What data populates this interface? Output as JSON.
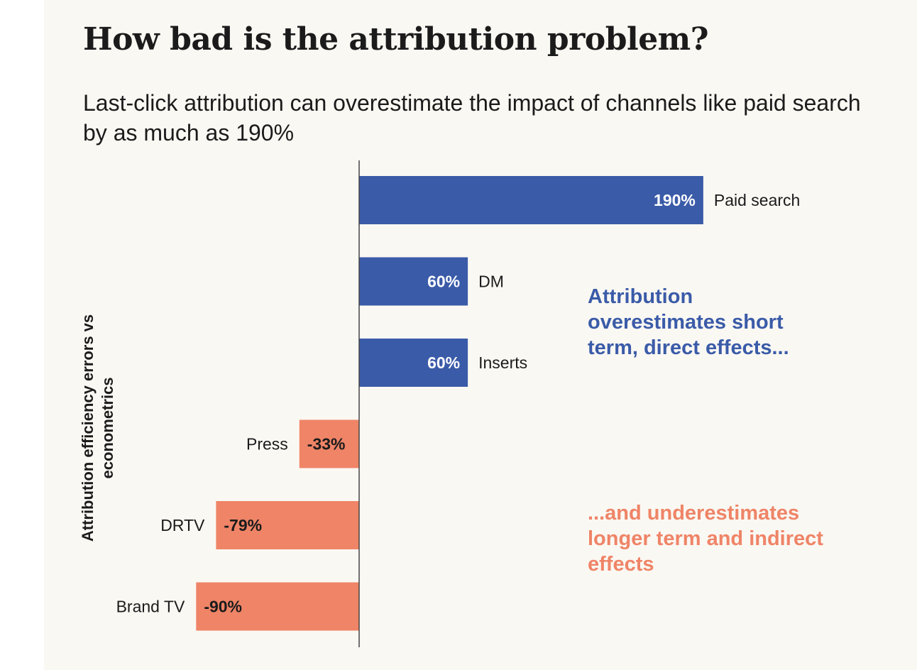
{
  "chart_data": {
    "type": "bar",
    "orientation": "horizontal",
    "title": "How bad is the attribution problem?",
    "subtitle": "Last-click attribution can overestimate the impact of channels like paid search by as much as 190%",
    "ylabel_line1": "Attribution efficiency errors vs",
    "ylabel_line2": "econometrics",
    "categories": [
      "Paid search",
      "DM",
      "Inserts",
      "Press",
      "DRTV",
      "Brand TV"
    ],
    "values": [
      190,
      60,
      60,
      -33,
      -79,
      -90
    ],
    "value_labels": [
      "190%",
      "60%",
      "60%",
      "-33%",
      "-79%",
      "-90%"
    ],
    "colors": {
      "positive": "#3a5ba8",
      "negative": "#ef8467",
      "axis": "#444444"
    },
    "annotations": {
      "positive": "Attribution overestimates short term, direct effects...",
      "negative": "...and underestimates longer term and indirect effects"
    }
  }
}
